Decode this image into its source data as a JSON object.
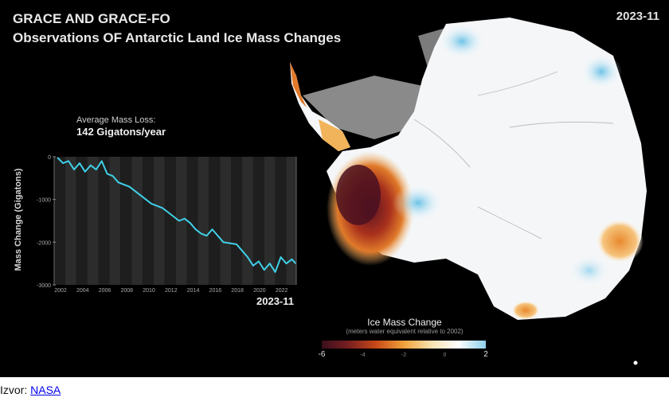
{
  "header": {
    "title_line1": "GRACE AND GRACE-FO",
    "title_line2": "Observations OF Antarctic Land Ice Mass Changes",
    "date": "2023-11"
  },
  "stats": {
    "avg_label": "Average Mass Loss:",
    "avg_value": "142 Gigatons/year"
  },
  "chart_data": {
    "type": "line",
    "title": "",
    "xlabel": "",
    "ylabel": "Mass Change  (Gigatons)",
    "xlim": [
      2002,
      2023.9
    ],
    "ylim": [
      -3000,
      0
    ],
    "xticks": [
      "2002",
      "2004",
      "2006",
      "2008",
      "2010",
      "2012",
      "2014",
      "2016",
      "2018",
      "2020",
      "2022"
    ],
    "yticks": [
      "0",
      "-1000",
      "-2000",
      "-3000"
    ],
    "grid": false,
    "date_label": "2023-11",
    "series": [
      {
        "x": [
          2002.3,
          2002.8,
          2003.3,
          2003.8,
          2004.3,
          2004.8,
          2005.3,
          2005.8,
          2006.3,
          2006.8,
          2007.3,
          2007.8,
          2008.3,
          2008.8,
          2009.3,
          2009.8,
          2010.3,
          2010.8,
          2011.3,
          2011.8,
          2012.3,
          2012.8,
          2013.3,
          2013.8,
          2014.3,
          2014.8,
          2015.3,
          2015.8,
          2016.3,
          2016.8,
          2017.3,
          2018.5,
          2019.0,
          2019.5,
          2020.0,
          2020.5,
          2021.0,
          2021.5,
          2022.0,
          2022.5,
          2023.0,
          2023.5,
          2023.85
        ],
        "y": [
          -20,
          -150,
          -100,
          -300,
          -150,
          -350,
          -200,
          -300,
          -100,
          -400,
          -450,
          -600,
          -650,
          -700,
          -800,
          -900,
          -1000,
          -1100,
          -1150,
          -1200,
          -1300,
          -1400,
          -1500,
          -1450,
          -1550,
          -1700,
          -1800,
          -1850,
          -1700,
          -1850,
          -2000,
          -2050,
          -2200,
          -2350,
          -2550,
          -2450,
          -2650,
          -2500,
          -2700,
          -2350,
          -2500,
          -2400,
          -2500
        ]
      }
    ]
  },
  "colorbar": {
    "title": "Ice Mass Change",
    "subtitle": "(meters water equivalent relative to 2002)",
    "ticks": [
      "-6",
      "-4",
      "-2",
      "0",
      "2"
    ],
    "colors": [
      "#3a0f1c",
      "#7a1f20",
      "#c84a18",
      "#f0a23a",
      "#f7e2b0",
      "#ffffff",
      "#8fd0ea"
    ]
  },
  "credit": {
    "prefix": "Izvor: ",
    "link": "NASA"
  }
}
